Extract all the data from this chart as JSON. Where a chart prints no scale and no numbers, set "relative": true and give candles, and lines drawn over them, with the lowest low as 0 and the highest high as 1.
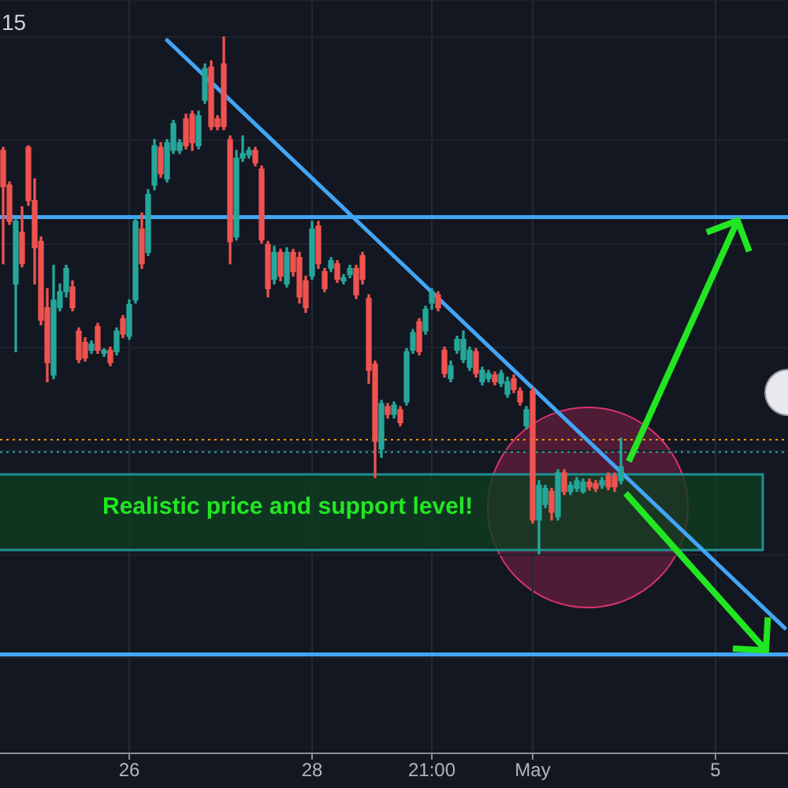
{
  "chart_data": {
    "type": "candlestick",
    "title": "15",
    "relative": true,
    "grid": true,
    "categories": [
      null,
      null,
      null,
      null,
      null,
      null,
      null,
      null,
      null,
      null,
      null,
      null,
      null,
      null,
      null,
      null,
      null,
      null,
      null,
      null,
      "26",
      null,
      null,
      null,
      null,
      null,
      null,
      null,
      null,
      null,
      null,
      null,
      null,
      null,
      null,
      null,
      null,
      null,
      null,
      null,
      null,
      null,
      null,
      null,
      null,
      null,
      null,
      null,
      null,
      "28",
      null,
      null,
      null,
      null,
      null,
      null,
      null,
      null,
      null,
      null,
      null,
      null,
      null,
      null,
      null,
      null,
      null,
      null,
      "21:00",
      null,
      null,
      null,
      null,
      null,
      null,
      null,
      null,
      null,
      null,
      null,
      null,
      null,
      null,
      null,
      "May",
      null,
      null,
      null,
      null,
      null,
      null,
      null,
      null,
      null,
      null,
      null,
      null,
      null,
      null,
      null,
      null,
      null,
      null,
      null,
      null,
      null,
      null,
      null,
      null,
      null,
      null,
      null,
      null,
      "5",
      null,
      null,
      null,
      null,
      null,
      null,
      null,
      null,
      null,
      null,
      null
    ],
    "ohlc": [
      [
        0.781,
        0.787,
        0.562,
        0.711
      ],
      [
        0.714,
        0.72,
        0.638,
        0.644
      ],
      [
        0.523,
        0.65,
        0.392,
        0.644
      ],
      [
        0.623,
        0.672,
        0.556,
        0.562
      ],
      [
        0.787,
        0.79,
        0.675,
        0.684
      ],
      [
        0.684,
        0.726,
        0.523,
        0.593
      ],
      [
        0.605,
        0.614,
        0.444,
        0.453
      ],
      [
        0.477,
        0.514,
        0.334,
        0.371
      ],
      [
        0.347,
        0.559,
        0.34,
        0.492
      ],
      [
        0.477,
        0.523,
        0.471,
        0.508
      ],
      [
        0.508,
        0.559,
        0.498,
        0.553
      ],
      [
        0.517,
        0.529,
        0.471,
        0.477
      ],
      [
        0.432,
        0.438,
        0.371,
        0.377
      ],
      [
        0.41,
        0.419,
        0.374,
        0.38
      ],
      [
        0.395,
        0.413,
        0.389,
        0.407
      ],
      [
        0.441,
        0.447,
        0.389,
        0.395
      ],
      [
        0.389,
        0.398,
        0.383,
        0.395
      ],
      [
        0.395,
        0.401,
        0.365,
        0.371
      ],
      [
        0.392,
        0.438,
        0.386,
        0.432
      ],
      [
        0.456,
        0.462,
        0.419,
        0.426
      ],
      [
        0.422,
        0.492,
        0.416,
        0.483
      ],
      [
        0.492,
        0.65,
        0.486,
        0.644
      ],
      [
        0.629,
        0.66,
        0.553,
        0.562
      ],
      [
        0.584,
        0.705,
        0.578,
        0.696
      ],
      [
        0.714,
        0.802,
        0.705,
        0.79
      ],
      [
        0.787,
        0.796,
        0.729,
        0.736
      ],
      [
        0.726,
        0.802,
        0.72,
        0.796
      ],
      [
        0.781,
        0.839,
        0.775,
        0.833
      ],
      [
        0.781,
        0.802,
        0.775,
        0.796
      ],
      [
        0.842,
        0.851,
        0.784,
        0.79
      ],
      [
        0.851,
        0.857,
        0.781,
        0.796
      ],
      [
        0.79,
        0.857,
        0.784,
        0.848
      ],
      [
        0.878,
        0.948,
        0.872,
        0.939
      ],
      [
        0.942,
        0.954,
        0.821,
        0.827
      ],
      [
        0.842,
        0.848,
        0.821,
        0.827
      ],
      [
        0.948,
        1,
        0.821,
        0.827
      ],
      [
        0.802,
        0.809,
        0.562,
        0.605
      ],
      [
        0.614,
        0.781,
        0.608,
        0.766
      ],
      [
        0.766,
        0.809,
        0.76,
        0.775
      ],
      [
        0.772,
        0.787,
        0.766,
        0.781
      ],
      [
        0.781,
        0.787,
        0.751,
        0.757
      ],
      [
        0.745,
        0.751,
        0.602,
        0.608
      ],
      [
        0.599,
        0.605,
        0.498,
        0.514
      ],
      [
        0.532,
        0.596,
        0.523,
        0.584
      ],
      [
        0.584,
        0.59,
        0.529,
        0.538
      ],
      [
        0.523,
        0.593,
        0.517,
        0.584
      ],
      [
        0.584,
        0.59,
        0.538,
        0.547
      ],
      [
        0.574,
        0.584,
        0.486,
        0.498
      ],
      [
        0.529,
        0.538,
        0.468,
        0.477
      ],
      [
        0.538,
        0.644,
        0.532,
        0.629
      ],
      [
        0.635,
        0.644,
        0.553,
        0.562
      ],
      [
        0.547,
        0.553,
        0.508,
        0.514
      ],
      [
        0.553,
        0.574,
        0.547,
        0.568
      ],
      [
        0.562,
        0.568,
        0.526,
        0.532
      ],
      [
        0.529,
        0.541,
        0.523,
        0.535
      ],
      [
        0.541,
        0.559,
        0.535,
        0.553
      ],
      [
        0.553,
        0.559,
        0.495,
        0.502
      ],
      [
        0.578,
        0.584,
        0.523,
        0.532
      ],
      [
        0.495,
        0.502,
        0.331,
        0.356
      ],
      [
        0.368,
        0.374,
        0.149,
        0.219
      ],
      [
        0.204,
        0.298,
        0.188,
        0.292
      ],
      [
        0.286,
        0.292,
        0.264,
        0.271
      ],
      [
        0.271,
        0.295,
        0.264,
        0.289
      ],
      [
        0.28,
        0.286,
        0.249,
        0.255
      ],
      [
        0.295,
        0.398,
        0.289,
        0.392
      ],
      [
        0.395,
        0.435,
        0.389,
        0.429
      ],
      [
        0.45,
        0.456,
        0.386,
        0.392
      ],
      [
        0.432,
        0.48,
        0.426,
        0.474
      ],
      [
        0.486,
        0.514,
        0.474,
        0.508
      ],
      [
        0.502,
        0.508,
        0.471,
        0.477
      ],
      [
        0.395,
        0.401,
        0.343,
        0.35
      ],
      [
        0.34,
        0.374,
        0.334,
        0.365
      ],
      [
        0.395,
        0.422,
        0.389,
        0.416
      ],
      [
        0.377,
        0.432,
        0.371,
        0.416
      ],
      [
        0.362,
        0.401,
        0.356,
        0.395
      ],
      [
        0.392,
        0.398,
        0.343,
        0.35
      ],
      [
        0.334,
        0.362,
        0.328,
        0.356
      ],
      [
        0.34,
        0.356,
        0.334,
        0.35
      ],
      [
        0.347,
        0.353,
        0.328,
        0.334
      ],
      [
        0.331,
        0.356,
        0.325,
        0.35
      ],
      [
        0.31,
        0.343,
        0.304,
        0.334
      ],
      [
        0.34,
        0.347,
        0.313,
        0.319
      ],
      [
        0.316,
        0.322,
        0.289,
        0.295
      ],
      [
        0.249,
        0.286,
        0.243,
        0.28
      ],
      [
        0.316,
        0.322,
        0.061,
        0.067
      ],
      [
        0.067,
        0.143,
        0,
        0.134
      ],
      [
        0.097,
        0.134,
        0.091,
        0.128
      ],
      [
        0.122,
        0.128,
        0.067,
        0.082
      ],
      [
        0.073,
        0.164,
        0.067,
        0.158
      ],
      [
        0.158,
        0.164,
        0.116,
        0.122
      ],
      [
        0.122,
        0.14,
        0.116,
        0.134
      ],
      [
        0.128,
        0.149,
        0.122,
        0.143
      ],
      [
        0.122,
        0.146,
        0.119,
        0.14
      ],
      [
        0.14,
        0.146,
        0.125,
        0.131
      ],
      [
        0.137,
        0.143,
        0.122,
        0.128
      ],
      [
        0.134,
        0.149,
        0.128,
        0.143
      ],
      [
        0.152,
        0.158,
        0.125,
        0.131
      ],
      [
        0.152,
        0.158,
        0.122,
        0.131
      ],
      [
        0.143,
        0.225,
        0.137,
        0.17
      ],
      null,
      null,
      null,
      null,
      null,
      null,
      null,
      null,
      null,
      null,
      null,
      null,
      null,
      null,
      null,
      null,
      null,
      null,
      null,
      null,
      null,
      null,
      null,
      null,
      null,
      null
    ],
    "colors": [
      "#ef5350",
      "#ef5350",
      "#26a69a",
      "#ef5350",
      "#ef5350",
      "#ef5350",
      "#ef5350",
      "#ef5350",
      "#26a69a",
      "#26a69a",
      "#26a69a",
      "#ef5350",
      "#ef5350",
      "#ef5350",
      "#26a69a",
      "#ef5350",
      "#26a69a",
      "#ef5350",
      "#26a69a",
      "#ef5350",
      "#26a69a",
      "#26a69a",
      "#ef5350",
      "#26a69a",
      "#26a69a",
      "#ef5350",
      "#26a69a",
      "#26a69a",
      "#26a69a",
      "#ef5350",
      "#ef5350",
      "#26a69a",
      "#26a69a",
      "#ef5350",
      "#ef5350",
      "#ef5350",
      "#ef5350",
      "#26a69a",
      "#26a69a",
      "#26a69a",
      "#ef5350",
      "#ef5350",
      "#ef5350",
      "#26a69a",
      "#ef5350",
      "#26a69a",
      "#ef5350",
      "#ef5350",
      "#ef5350",
      "#26a69a",
      "#ef5350",
      "#ef5350",
      "#26a69a",
      "#ef5350",
      "#26a69a",
      "#26a69a",
      "#ef5350",
      "#ef5350",
      "#ef5350",
      "#ef5350",
      "#26a69a",
      "#ef5350",
      "#26a69a",
      "#ef5350",
      "#26a69a",
      "#26a69a",
      "#ef5350",
      "#26a69a",
      "#26a69a",
      "#ef5350",
      "#ef5350",
      "#26a69a",
      "#26a69a",
      "#26a69a",
      "#26a69a",
      "#ef5350",
      "#26a69a",
      "#26a69a",
      "#ef5350",
      "#26a69a",
      "#26a69a",
      "#ef5350",
      "#ef5350",
      "#26a69a",
      "#ef5350",
      "#26a69a",
      "#26a69a",
      "#ef5350",
      "#26a69a",
      "#ef5350",
      "#26a69a",
      "#26a69a",
      "#26a69a",
      "#ef5350",
      "#ef5350",
      "#26a69a",
      "#ef5350",
      "#ef5350",
      "#26a69a",
      null,
      null,
      null,
      null,
      null,
      null,
      null,
      null,
      null,
      null,
      null,
      null,
      null,
      null,
      null,
      null,
      null,
      null,
      null,
      null,
      null,
      null,
      null,
      null,
      null,
      null
    ],
    "series": [
      {
        "type": "line",
        "color": "#42a5f5",
        "values": [
          null,
          null,
          null,
          null,
          null,
          null,
          null,
          null,
          null,
          null,
          null,
          null,
          null,
          null,
          null,
          null,
          null,
          null,
          null,
          null,
          null,
          null,
          null,
          null,
          null,
          null,
          0.994,
          null,
          null,
          null,
          null,
          null,
          null,
          null,
          null,
          null,
          null,
          null,
          null,
          null,
          null,
          null,
          null,
          null,
          null,
          null,
          null,
          null,
          null,
          null,
          null,
          null,
          null,
          null,
          null,
          null,
          null,
          null,
          null,
          null,
          null,
          null,
          null,
          null,
          null,
          null,
          null,
          null,
          null,
          null,
          null,
          null,
          null,
          null,
          null,
          null,
          null,
          null,
          null,
          null,
          null,
          null,
          null,
          null,
          null,
          null,
          null,
          null,
          null,
          null,
          null,
          null,
          null,
          null,
          null,
          null,
          null,
          null,
          null,
          null,
          null,
          null,
          null,
          null,
          null,
          null,
          null,
          null,
          null,
          null,
          null,
          null,
          null,
          null,
          null,
          null,
          null,
          null,
          null,
          null,
          null,
          null,
          null,
          null,
          -0.142
        ]
      }
    ],
    "ref_lines": [
      {
        "axis": "y",
        "value": 0.652,
        "color": "#42a5f5",
        "line_style": "solid"
      },
      {
        "axis": "y",
        "value": -0.193,
        "color": "#42a5f5",
        "line_style": "solid"
      },
      {
        "axis": "y",
        "value": 0.222,
        "color": "#ff9800",
        "line_style": "dotted"
      },
      {
        "axis": "y",
        "value": 0.198,
        "color": "#26a69a",
        "line_style": "dotted"
      }
    ],
    "bands": [
      {
        "axis": "y",
        "from": 0.009,
        "to": 0.155,
        "label": "Realistic price and support level!",
        "color": "#0f3d22"
      }
    ]
  }
}
